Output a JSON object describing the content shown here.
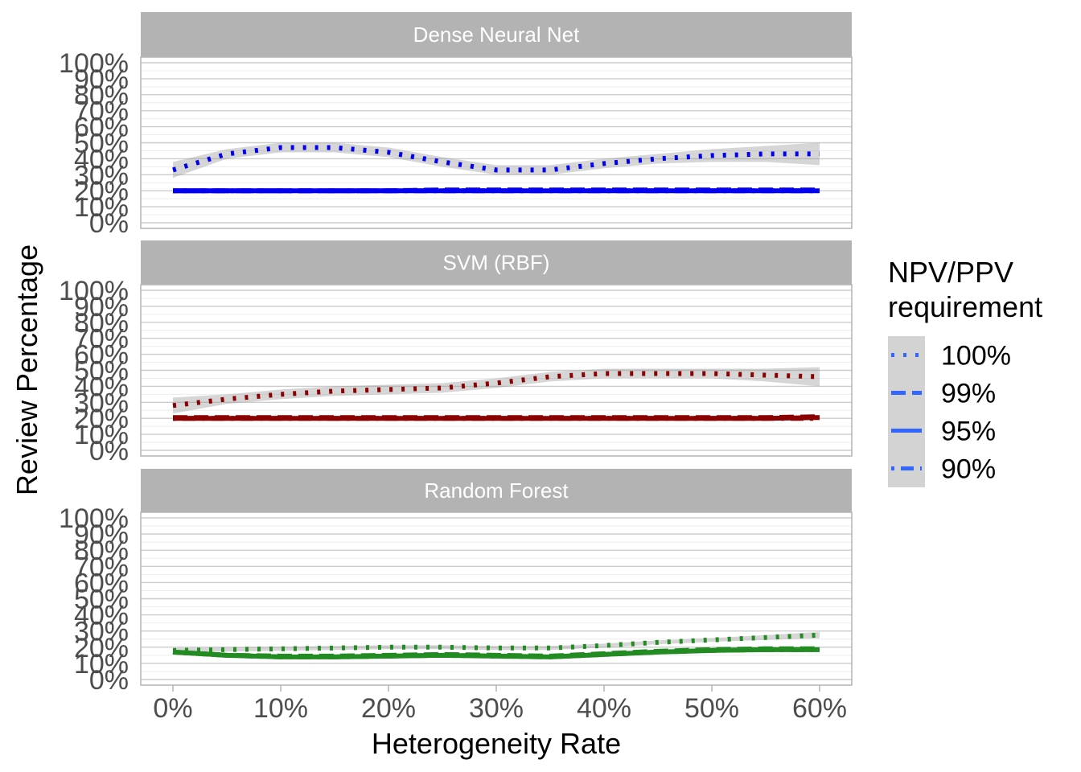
{
  "chart_data": {
    "type": "line",
    "xlabel": "Heterogeneity Rate",
    "ylabel": "Review Percentage",
    "x_ticks": [
      "0%",
      "10%",
      "20%",
      "30%",
      "40%",
      "50%",
      "60%"
    ],
    "y_ticks": [
      "0%",
      "10%",
      "20%",
      "30%",
      "40%",
      "50%",
      "60%",
      "70%",
      "80%",
      "90%",
      "100%"
    ],
    "xlim": [
      0,
      60
    ],
    "ylim": [
      0,
      100
    ],
    "legend": {
      "title_line1": "NPV/PPV",
      "title_line2": "requirement",
      "placement": "right",
      "entries": [
        {
          "label": "100%",
          "dash": "dotted"
        },
        {
          "label": "99%",
          "dash": "dashed"
        },
        {
          "label": "95%",
          "dash": "solid"
        },
        {
          "label": "90%",
          "dash": "dotdash"
        }
      ],
      "key_color": "#3366ff"
    },
    "panels": [
      {
        "title": "Dense Neural Net",
        "color": "#0000ee",
        "x": [
          0,
          5,
          10,
          15,
          20,
          25,
          30,
          35,
          40,
          45,
          50,
          55,
          60
        ],
        "series": [
          {
            "name": "100%",
            "values": [
              33,
              43,
              47,
              47,
              44,
              38,
              33,
              33,
              37,
              40,
              42,
              43,
              43
            ],
            "band": [
              5,
              3,
              3,
              3,
              3,
              3,
              3,
              3,
              3,
              3,
              4,
              5,
              7
            ]
          },
          {
            "name": "99%",
            "values": [
              20,
              20,
              20,
              20,
              20,
              20.5,
              20.5,
              20.5,
              20.5,
              20.5,
              20.5,
              20.5,
              20.5
            ],
            "band": [
              0.5,
              0.5,
              0.5,
              0.5,
              0.5,
              0.5,
              0.5,
              0.5,
              0.5,
              0.5,
              0.5,
              0.5,
              0.5
            ]
          },
          {
            "name": "95%",
            "values": [
              20,
              20,
              20,
              20,
              20,
              20,
              20,
              20,
              20,
              20,
              20,
              20,
              20
            ],
            "band": [
              0.5,
              0.5,
              0.5,
              0.5,
              0.5,
              0.5,
              0.5,
              0.5,
              0.5,
              0.5,
              0.5,
              0.5,
              0.5
            ]
          },
          {
            "name": "90%",
            "values": [
              20,
              20,
              20,
              20,
              20,
              20,
              20,
              20,
              20,
              20,
              20,
              20,
              20
            ],
            "band": [
              0.5,
              0.5,
              0.5,
              0.5,
              0.5,
              0.5,
              0.5,
              0.5,
              0.5,
              0.5,
              0.5,
              0.5,
              0.5
            ]
          }
        ]
      },
      {
        "title": "SVM (RBF)",
        "color": "#8b0000",
        "x": [
          0,
          5,
          10,
          15,
          20,
          25,
          30,
          35,
          40,
          45,
          50,
          55,
          60
        ],
        "series": [
          {
            "name": "100%",
            "values": [
              28,
              32,
              35,
              37,
              38,
              39,
              42,
              46,
              48,
              48,
              48,
              47,
              46
            ],
            "band": [
              5,
              3,
              3,
              3,
              3,
              3,
              3,
              3,
              3,
              3,
              3,
              4,
              6
            ]
          },
          {
            "name": "99%",
            "values": [
              20.5,
              20.5,
              20.5,
              20.5,
              20.5,
              20.5,
              20.5,
              20.5,
              20.5,
              20.5,
              20.5,
              20.5,
              21
            ],
            "band": [
              0.6,
              0.6,
              0.6,
              0.6,
              0.6,
              0.6,
              0.6,
              0.6,
              0.6,
              0.6,
              0.6,
              0.6,
              0.8
            ]
          },
          {
            "name": "95%",
            "values": [
              20,
              20,
              20,
              20,
              20,
              20,
              20,
              20,
              20,
              20,
              20,
              20,
              20.5
            ],
            "band": [
              0.5,
              0.5,
              0.5,
              0.5,
              0.5,
              0.5,
              0.5,
              0.5,
              0.5,
              0.5,
              0.5,
              0.5,
              0.7
            ]
          },
          {
            "name": "90%",
            "values": [
              20,
              20,
              20,
              20,
              20,
              20,
              20,
              20,
              20,
              20,
              20,
              20,
              20
            ],
            "band": [
              0.5,
              0.5,
              0.5,
              0.5,
              0.5,
              0.5,
              0.5,
              0.5,
              0.5,
              0.5,
              0.5,
              0.5,
              0.5
            ]
          }
        ]
      },
      {
        "title": "Random Forest",
        "color": "#228b22",
        "x": [
          0,
          5,
          10,
          15,
          20,
          25,
          30,
          35,
          40,
          45,
          50,
          55,
          60
        ],
        "series": [
          {
            "name": "100%",
            "values": [
              18,
              18.5,
              19,
              19.5,
              20,
              20,
              19.5,
              19.5,
              21,
              23,
              24.5,
              26,
              27.5
            ],
            "band": [
              1.5,
              1.2,
              1.2,
              1.2,
              1.2,
              1.2,
              1.2,
              1.2,
              1.2,
              1.2,
              1.2,
              1.5,
              2
            ]
          },
          {
            "name": "99%",
            "values": [
              17,
              15,
              14.5,
              14.5,
              15,
              15.5,
              15,
              14.5,
              16,
              17.5,
              18.5,
              19,
              19
            ],
            "band": [
              0.8,
              0.6,
              0.6,
              0.6,
              0.6,
              0.6,
              0.6,
              0.6,
              0.6,
              0.6,
              0.6,
              0.6,
              0.8
            ]
          },
          {
            "name": "95%",
            "values": [
              17,
              15,
              14,
              14,
              14.5,
              15,
              14.5,
              14,
              15.5,
              17,
              18,
              18.5,
              18.5
            ],
            "band": [
              0.8,
              0.6,
              0.6,
              0.6,
              0.6,
              0.6,
              0.6,
              0.6,
              0.6,
              0.6,
              0.6,
              0.6,
              0.8
            ]
          },
          {
            "name": "90%",
            "values": [
              17,
              15,
              14,
              14,
              14.5,
              15,
              14.5,
              14,
              15.5,
              17,
              18,
              18.5,
              18.5
            ],
            "band": [
              0.8,
              0.6,
              0.6,
              0.6,
              0.6,
              0.6,
              0.6,
              0.6,
              0.6,
              0.6,
              0.6,
              0.6,
              0.8
            ]
          }
        ]
      }
    ]
  }
}
